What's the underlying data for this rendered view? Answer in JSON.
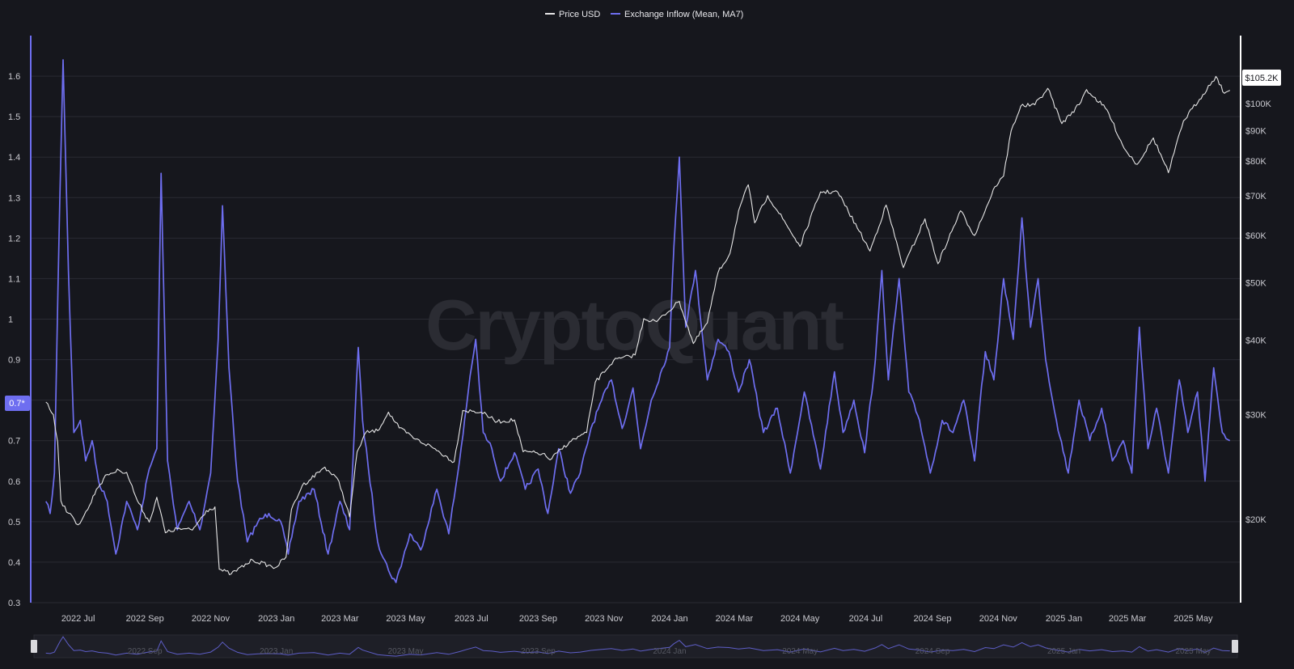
{
  "watermark": "CryptoQuant",
  "colors": {
    "background": "#16171d",
    "price": "#e6e6e6",
    "inflow": "#6e6ef0",
    "grid": "#2a2b33",
    "axis": "#ffffff"
  },
  "chart_data": {
    "type": "line",
    "legend_position": "top-center",
    "series": [
      {
        "name": "Price USD",
        "axis": "right",
        "points": [
          [
            "2022-06-01",
            31500
          ],
          [
            "2022-06-08",
            30000
          ],
          [
            "2022-06-12",
            27000
          ],
          [
            "2022-06-15",
            21500
          ],
          [
            "2022-06-22",
            20500
          ],
          [
            "2022-07-01",
            19600
          ],
          [
            "2022-07-10",
            20800
          ],
          [
            "2022-07-18",
            22500
          ],
          [
            "2022-07-28",
            23800
          ],
          [
            "2022-08-08",
            24200
          ],
          [
            "2022-08-15",
            24000
          ],
          [
            "2022-08-25",
            21500
          ],
          [
            "2022-09-05",
            19800
          ],
          [
            "2022-09-12",
            21800
          ],
          [
            "2022-09-20",
            19000
          ],
          [
            "2022-10-01",
            19300
          ],
          [
            "2022-10-15",
            19200
          ],
          [
            "2022-10-28",
            20700
          ],
          [
            "2022-11-05",
            21000
          ],
          [
            "2022-11-09",
            16500
          ],
          [
            "2022-11-20",
            16200
          ],
          [
            "2022-12-10",
            17100
          ],
          [
            "2022-12-31",
            16600
          ],
          [
            "2023-01-10",
            17300
          ],
          [
            "2023-01-15",
            20800
          ],
          [
            "2023-01-25",
            22800
          ],
          [
            "2023-02-15",
            24500
          ],
          [
            "2023-02-28",
            23200
          ],
          [
            "2023-03-10",
            20200
          ],
          [
            "2023-03-17",
            26000
          ],
          [
            "2023-03-25",
            28000
          ],
          [
            "2023-04-05",
            28200
          ],
          [
            "2023-04-15",
            30300
          ],
          [
            "2023-04-25",
            28500
          ],
          [
            "2023-05-10",
            27300
          ],
          [
            "2023-05-25",
            26500
          ],
          [
            "2023-06-15",
            25000
          ],
          [
            "2023-06-23",
            30500
          ],
          [
            "2023-07-10",
            30300
          ],
          [
            "2023-07-25",
            29200
          ],
          [
            "2023-08-10",
            29400
          ],
          [
            "2023-08-18",
            26000
          ],
          [
            "2023-09-05",
            25800
          ],
          [
            "2023-09-12",
            25200
          ],
          [
            "2023-09-30",
            27000
          ],
          [
            "2023-10-16",
            28000
          ],
          [
            "2023-10-24",
            34000
          ],
          [
            "2023-11-10",
            37000
          ],
          [
            "2023-11-30",
            37800
          ],
          [
            "2023-12-08",
            43500
          ],
          [
            "2023-12-20",
            43000
          ],
          [
            "2024-01-10",
            46500
          ],
          [
            "2024-01-23",
            39500
          ],
          [
            "2024-02-05",
            42800
          ],
          [
            "2024-02-15",
            52000
          ],
          [
            "2024-02-26",
            56000
          ],
          [
            "2024-03-05",
            66000
          ],
          [
            "2024-03-14",
            73000
          ],
          [
            "2024-03-20",
            63000
          ],
          [
            "2024-04-01",
            70000
          ],
          [
            "2024-04-15",
            64000
          ],
          [
            "2024-05-01",
            57500
          ],
          [
            "2024-05-20",
            71000
          ],
          [
            "2024-06-05",
            71000
          ],
          [
            "2024-06-25",
            61000
          ],
          [
            "2024-07-05",
            56500
          ],
          [
            "2024-07-20",
            67500
          ],
          [
            "2024-08-05",
            53000
          ],
          [
            "2024-08-25",
            64000
          ],
          [
            "2024-09-06",
            53800
          ],
          [
            "2024-09-27",
            66000
          ],
          [
            "2024-10-10",
            60000
          ],
          [
            "2024-10-29",
            72500
          ],
          [
            "2024-11-06",
            75500
          ],
          [
            "2024-11-13",
            90000
          ],
          [
            "2024-11-22",
            99000
          ],
          [
            "2024-12-05",
            99500
          ],
          [
            "2024-12-17",
            106000
          ],
          [
            "2024-12-30",
            92500
          ],
          [
            "2025-01-15",
            99500
          ],
          [
            "2025-01-22",
            105500
          ],
          [
            "2025-02-10",
            97500
          ],
          [
            "2025-02-26",
            84000
          ],
          [
            "2025-03-10",
            79000
          ],
          [
            "2025-03-25",
            87500
          ],
          [
            "2025-04-08",
            76500
          ],
          [
            "2025-04-22",
            93500
          ],
          [
            "2025-05-10",
            103500
          ],
          [
            "2025-05-22",
            111000
          ],
          [
            "2025-05-30",
            104000
          ],
          [
            "2025-06-04",
            105200
          ]
        ]
      },
      {
        "name": "Exchange Inflow (Mean, MA7)",
        "axis": "left",
        "points": [
          [
            "2022-06-01",
            0.55
          ],
          [
            "2022-06-05",
            0.52
          ],
          [
            "2022-06-09",
            0.62
          ],
          [
            "2022-06-14",
            1.3
          ],
          [
            "2022-06-17",
            1.64
          ],
          [
            "2022-06-22",
            1.12
          ],
          [
            "2022-06-27",
            0.72
          ],
          [
            "2022-07-03",
            0.75
          ],
          [
            "2022-07-08",
            0.65
          ],
          [
            "2022-07-14",
            0.7
          ],
          [
            "2022-07-20",
            0.6
          ],
          [
            "2022-07-28",
            0.55
          ],
          [
            "2022-08-05",
            0.42
          ],
          [
            "2022-08-15",
            0.55
          ],
          [
            "2022-08-25",
            0.48
          ],
          [
            "2022-09-05",
            0.63
          ],
          [
            "2022-09-12",
            0.68
          ],
          [
            "2022-09-16",
            1.36
          ],
          [
            "2022-09-22",
            0.65
          ],
          [
            "2022-10-01",
            0.48
          ],
          [
            "2022-10-12",
            0.55
          ],
          [
            "2022-10-22",
            0.48
          ],
          [
            "2022-11-01",
            0.62
          ],
          [
            "2022-11-08",
            0.95
          ],
          [
            "2022-11-12",
            1.28
          ],
          [
            "2022-11-18",
            0.88
          ],
          [
            "2022-11-26",
            0.6
          ],
          [
            "2022-12-05",
            0.45
          ],
          [
            "2022-12-15",
            0.5
          ],
          [
            "2022-12-25",
            0.52
          ],
          [
            "2023-01-05",
            0.5
          ],
          [
            "2023-01-12",
            0.42
          ],
          [
            "2023-01-22",
            0.55
          ],
          [
            "2023-02-05",
            0.58
          ],
          [
            "2023-02-18",
            0.42
          ],
          [
            "2023-03-01",
            0.55
          ],
          [
            "2023-03-10",
            0.48
          ],
          [
            "2023-03-18",
            0.93
          ],
          [
            "2023-03-22",
            0.75
          ],
          [
            "2023-04-05",
            0.45
          ],
          [
            "2023-04-15",
            0.38
          ],
          [
            "2023-04-22",
            0.35
          ],
          [
            "2023-05-05",
            0.47
          ],
          [
            "2023-05-15",
            0.43
          ],
          [
            "2023-05-30",
            0.58
          ],
          [
            "2023-06-10",
            0.47
          ],
          [
            "2023-06-20",
            0.65
          ],
          [
            "2023-06-28",
            0.82
          ],
          [
            "2023-07-05",
            0.95
          ],
          [
            "2023-07-12",
            0.72
          ],
          [
            "2023-07-20",
            0.68
          ],
          [
            "2023-07-28",
            0.6
          ],
          [
            "2023-08-10",
            0.67
          ],
          [
            "2023-08-20",
            0.58
          ],
          [
            "2023-09-01",
            0.63
          ],
          [
            "2023-09-10",
            0.52
          ],
          [
            "2023-09-20",
            0.68
          ],
          [
            "2023-10-01",
            0.57
          ],
          [
            "2023-10-10",
            0.62
          ],
          [
            "2023-10-20",
            0.73
          ],
          [
            "2023-10-30",
            0.8
          ],
          [
            "2023-11-08",
            0.85
          ],
          [
            "2023-11-18",
            0.73
          ],
          [
            "2023-11-28",
            0.83
          ],
          [
            "2023-12-05",
            0.68
          ],
          [
            "2023-12-15",
            0.8
          ],
          [
            "2024-01-01",
            0.93
          ],
          [
            "2024-01-05",
            1.18
          ],
          [
            "2024-01-10",
            1.4
          ],
          [
            "2024-01-16",
            0.98
          ],
          [
            "2024-01-25",
            1.12
          ],
          [
            "2024-02-05",
            0.85
          ],
          [
            "2024-02-15",
            0.95
          ],
          [
            "2024-02-25",
            0.92
          ],
          [
            "2024-03-05",
            0.82
          ],
          [
            "2024-03-15",
            0.9
          ],
          [
            "2024-03-28",
            0.72
          ],
          [
            "2024-04-10",
            0.78
          ],
          [
            "2024-04-22",
            0.62
          ],
          [
            "2024-05-05",
            0.82
          ],
          [
            "2024-05-20",
            0.63
          ],
          [
            "2024-06-02",
            0.87
          ],
          [
            "2024-06-10",
            0.72
          ],
          [
            "2024-06-20",
            0.8
          ],
          [
            "2024-06-30",
            0.67
          ],
          [
            "2024-07-10",
            0.9
          ],
          [
            "2024-07-16",
            1.12
          ],
          [
            "2024-07-22",
            0.85
          ],
          [
            "2024-08-01",
            1.1
          ],
          [
            "2024-08-10",
            0.82
          ],
          [
            "2024-08-20",
            0.75
          ],
          [
            "2024-08-30",
            0.62
          ],
          [
            "2024-09-10",
            0.75
          ],
          [
            "2024-09-20",
            0.72
          ],
          [
            "2024-09-30",
            0.8
          ],
          [
            "2024-10-10",
            0.65
          ],
          [
            "2024-10-20",
            0.92
          ],
          [
            "2024-10-28",
            0.85
          ],
          [
            "2024-11-06",
            1.1
          ],
          [
            "2024-11-15",
            0.95
          ],
          [
            "2024-11-23",
            1.25
          ],
          [
            "2024-12-01",
            0.98
          ],
          [
            "2024-12-08",
            1.1
          ],
          [
            "2024-12-15",
            0.9
          ],
          [
            "2024-12-25",
            0.75
          ],
          [
            "2025-01-05",
            0.62
          ],
          [
            "2025-01-15",
            0.8
          ],
          [
            "2025-01-25",
            0.7
          ],
          [
            "2025-02-05",
            0.78
          ],
          [
            "2025-02-15",
            0.65
          ],
          [
            "2025-02-25",
            0.7
          ],
          [
            "2025-03-05",
            0.62
          ],
          [
            "2025-03-12",
            0.98
          ],
          [
            "2025-03-20",
            0.68
          ],
          [
            "2025-03-28",
            0.78
          ],
          [
            "2025-04-08",
            0.62
          ],
          [
            "2025-04-18",
            0.85
          ],
          [
            "2025-04-26",
            0.72
          ],
          [
            "2025-05-05",
            0.82
          ],
          [
            "2025-05-12",
            0.6
          ],
          [
            "2025-05-20",
            0.88
          ],
          [
            "2025-05-28",
            0.72
          ],
          [
            "2025-06-04",
            0.7
          ]
        ]
      }
    ],
    "left_axis": {
      "range": [
        0.3,
        1.7
      ],
      "ticks": [
        0.3,
        0.4,
        0.5,
        0.6,
        0.7,
        0.8,
        0.9,
        1,
        1.1,
        1.2,
        1.3,
        1.4,
        1.5,
        1.6
      ],
      "tick_labels": [
        "0.3",
        "0.4",
        "0.5",
        "0.6",
        "0.7",
        "0.8",
        "0.9",
        "1",
        "1.1",
        "1.2",
        "1.3",
        "1.4",
        "1.5",
        "1.6"
      ]
    },
    "right_axis": {
      "scale": "log",
      "range": [
        14500,
        130000
      ],
      "ticks": [
        20000,
        30000,
        40000,
        50000,
        60000,
        70000,
        80000,
        90000,
        100000
      ],
      "tick_labels": [
        "$20K",
        "$30K",
        "$40K",
        "$50K",
        "$60K",
        "$70K",
        "$80K",
        "$90K",
        "$100K"
      ]
    },
    "x_axis": {
      "range": [
        "2022-05-18",
        "2025-06-14"
      ],
      "ticks": [
        "2022-07-01",
        "2022-09-01",
        "2022-11-01",
        "2023-01-01",
        "2023-03-01",
        "2023-05-01",
        "2023-07-01",
        "2023-09-01",
        "2023-11-01",
        "2024-01-01",
        "2024-03-01",
        "2024-05-01",
        "2024-07-01",
        "2024-09-01",
        "2024-11-01",
        "2025-01-01",
        "2025-03-01",
        "2025-05-01"
      ],
      "tick_labels": [
        "2022 Jul",
        "2022 Sep",
        "2022 Nov",
        "2023 Jan",
        "2023 Mar",
        "2023 May",
        "2023 Jul",
        "2023 Sep",
        "2023 Nov",
        "2024 Jan",
        "2024 Mar",
        "2024 May",
        "2024 Jul",
        "2024 Sep",
        "2024 Nov",
        "2025 Jan",
        "2025 Mar",
        "2025 May"
      ]
    },
    "navigator_labels": [
      "2022 Sep",
      "2023 Jan",
      "2023 May",
      "2023 Sep",
      "2024 Jan",
      "2024 May",
      "2024 Sep",
      "2025 Jan",
      "2025 May"
    ],
    "navigator_label_dates": [
      "2022-09-01",
      "2023-01-01",
      "2023-05-01",
      "2023-09-01",
      "2024-01-01",
      "2024-05-01",
      "2024-09-01",
      "2025-01-01",
      "2025-05-01"
    ],
    "current_values": {
      "price_label": "$105.2K",
      "price_value": 105200,
      "inflow_label": "0.7*",
      "inflow_value": 0.7
    }
  }
}
